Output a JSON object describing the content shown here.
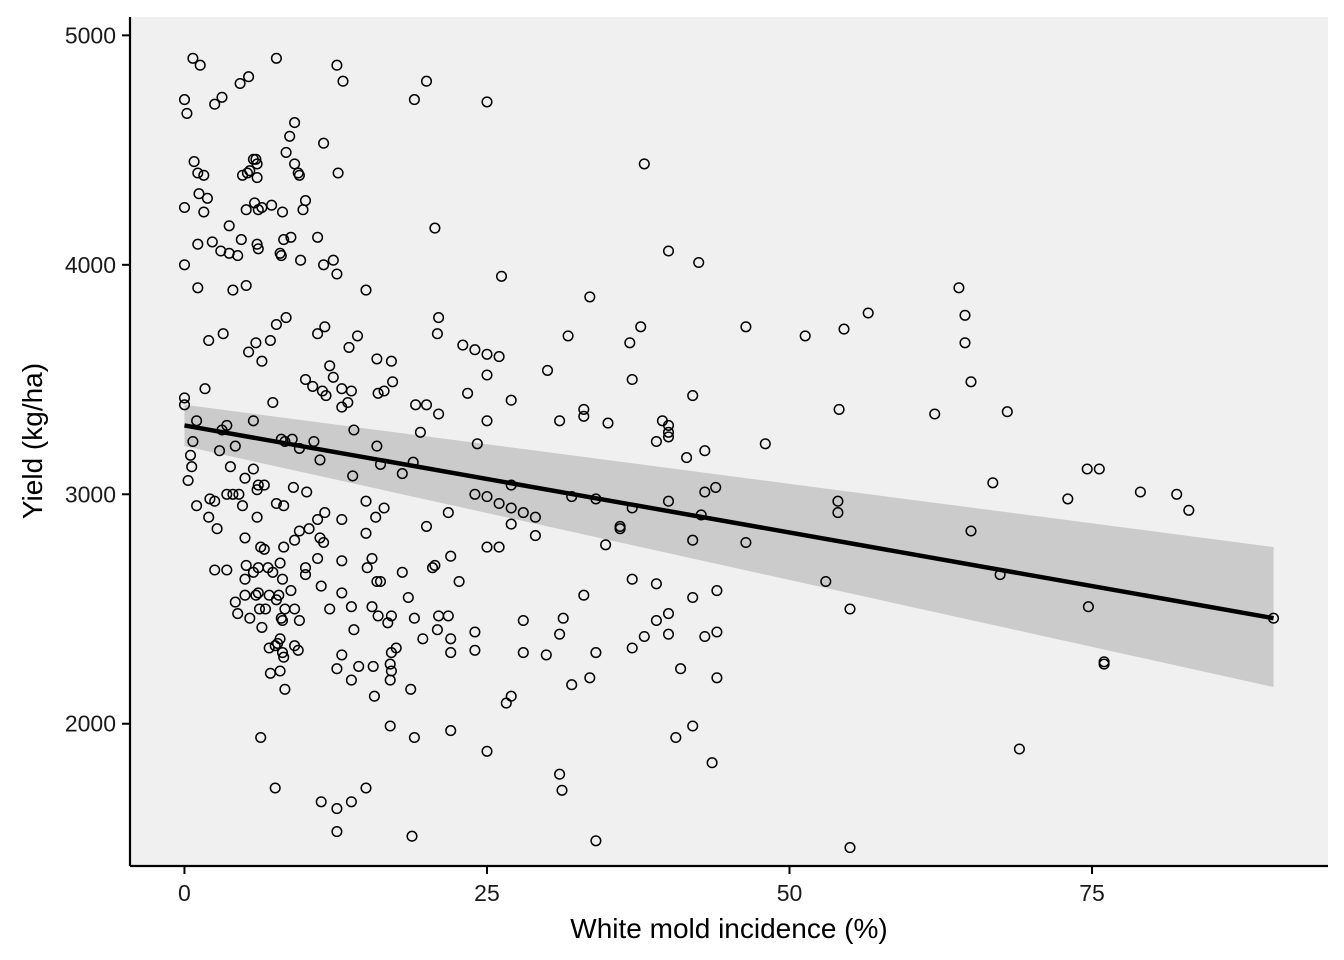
{
  "chart_data": {
    "type": "scatter",
    "title": "",
    "xlabel": "White mold incidence (%)",
    "ylabel": "Yield (kg/ha)",
    "xlim": [
      -4.5,
      94.5
    ],
    "ylim": [
      1380,
      5080
    ],
    "xticks": [
      0,
      25,
      50,
      75
    ],
    "yticks": [
      2000,
      3000,
      4000,
      5000
    ],
    "grid": false,
    "legend": "none",
    "colors": {
      "panel_background": "#f0f0f0",
      "point_stroke": "#000000",
      "point_fill": "none",
      "fit_line": "#000000",
      "confidence_band": "#c8c8c8",
      "axis": "#000000"
    },
    "trend": {
      "method": "linear regression",
      "x": [
        0,
        90
      ],
      "y": [
        3300,
        2460
      ],
      "ci_lower": [
        3210,
        2160
      ],
      "ci_upper": [
        3390,
        2770
      ]
    },
    "points": [
      [
        0,
        4720
      ],
      [
        0.2,
        4660
      ],
      [
        0.7,
        4900
      ],
      [
        1.3,
        4870
      ],
      [
        0.8,
        4450
      ],
      [
        1.1,
        4400
      ],
      [
        1.6,
        4390
      ],
      [
        0,
        4250
      ],
      [
        1.2,
        4310
      ],
      [
        1.9,
        4290
      ],
      [
        1.6,
        4230
      ],
      [
        2.3,
        4100
      ],
      [
        1.1,
        4090
      ],
      [
        0,
        4000
      ],
      [
        1.1,
        3900
      ],
      [
        2.5,
        4700
      ],
      [
        3.1,
        4730
      ],
      [
        4.6,
        4790
      ],
      [
        5.3,
        4820
      ],
      [
        7.6,
        4900
      ],
      [
        12.6,
        4870
      ],
      [
        13.1,
        4800
      ],
      [
        20,
        4800
      ],
      [
        19,
        4720
      ],
      [
        25,
        4710
      ],
      [
        4.8,
        4390
      ],
      [
        5.2,
        4400
      ],
      [
        5.4,
        4410
      ],
      [
        5.7,
        4460
      ],
      [
        5.9,
        4460
      ],
      [
        6.0,
        4440
      ],
      [
        6.0,
        4380
      ],
      [
        6.1,
        4240
      ],
      [
        6.4,
        4250
      ],
      [
        5.8,
        4270
      ],
      [
        7.2,
        4260
      ],
      [
        5.1,
        4240
      ],
      [
        3.7,
        4170
      ],
      [
        4.7,
        4110
      ],
      [
        3.0,
        4060
      ],
      [
        3.7,
        4050
      ],
      [
        4.4,
        4040
      ],
      [
        6.0,
        4090
      ],
      [
        6.1,
        4070
      ],
      [
        7.9,
        4050
      ],
      [
        8.0,
        4040
      ],
      [
        8.1,
        4230
      ],
      [
        8.2,
        4110
      ],
      [
        8.8,
        4120
      ],
      [
        8.4,
        4490
      ],
      [
        8.7,
        4560
      ],
      [
        9.1,
        4620
      ],
      [
        9.1,
        4440
      ],
      [
        9.4,
        4400
      ],
      [
        9.5,
        4390
      ],
      [
        9.8,
        4240
      ],
      [
        10.0,
        4280
      ],
      [
        9.6,
        4020
      ],
      [
        11.0,
        4120
      ],
      [
        11.5,
        4000
      ],
      [
        12.3,
        4020
      ],
      [
        12.6,
        3960
      ],
      [
        11.5,
        4530
      ],
      [
        12.7,
        4400
      ],
      [
        4.0,
        3890
      ],
      [
        5.1,
        3910
      ],
      [
        7.6,
        3740
      ],
      [
        8.4,
        3770
      ],
      [
        2.0,
        3670
      ],
      [
        3.2,
        3700
      ],
      [
        5.3,
        3620
      ],
      [
        5.9,
        3660
      ],
      [
        6.4,
        3580
      ],
      [
        7.1,
        3670
      ],
      [
        7.3,
        3400
      ],
      [
        1.7,
        3460
      ],
      [
        0,
        3420
      ],
      [
        0,
        3390
      ],
      [
        11.0,
        3700
      ],
      [
        11.6,
        3730
      ],
      [
        12.0,
        3560
      ],
      [
        12.3,
        3510
      ],
      [
        10.0,
        3500
      ],
      [
        10.6,
        3470
      ],
      [
        11.4,
        3450
      ],
      [
        11.7,
        3430
      ],
      [
        13.0,
        3460
      ],
      [
        13.5,
        3400
      ],
      [
        13.0,
        3380
      ],
      [
        13.6,
        3640
      ],
      [
        14.3,
        3690
      ],
      [
        15.0,
        3890
      ],
      [
        13.8,
        3450
      ],
      [
        0.5,
        3170
      ],
      [
        0.7,
        3230
      ],
      [
        0.6,
        3120
      ],
      [
        1.0,
        3320
      ],
      [
        3.1,
        3280
      ],
      [
        3.5,
        3300
      ],
      [
        4.2,
        3210
      ],
      [
        2.9,
        3190
      ],
      [
        3.8,
        3120
      ],
      [
        5.7,
        3320
      ],
      [
        5.7,
        3110
      ],
      [
        6.1,
        3040
      ],
      [
        6.6,
        3040
      ],
      [
        5.0,
        3070
      ],
      [
        6.0,
        3020
      ],
      [
        8.0,
        3240
      ],
      [
        8.3,
        3230
      ],
      [
        8.9,
        3240
      ],
      [
        9.5,
        3200
      ],
      [
        9.0,
        3030
      ],
      [
        10.1,
        3010
      ],
      [
        10.7,
        3230
      ],
      [
        11.2,
        3150
      ],
      [
        14.0,
        3280
      ],
      [
        13.9,
        3080
      ],
      [
        15.9,
        3210
      ],
      [
        16.2,
        3130
      ],
      [
        16.0,
        3440
      ],
      [
        16.5,
        3450
      ],
      [
        17.2,
        3490
      ],
      [
        17.1,
        3580
      ],
      [
        15.9,
        3590
      ],
      [
        0.3,
        3060
      ],
      [
        1.0,
        2950
      ],
      [
        2.1,
        2980
      ],
      [
        2.5,
        2970
      ],
      [
        2.0,
        2900
      ],
      [
        2.7,
        2850
      ],
      [
        3.5,
        3000
      ],
      [
        4.0,
        3000
      ],
      [
        4.5,
        3000
      ],
      [
        4.8,
        2950
      ],
      [
        6.0,
        2900
      ],
      [
        7.6,
        2960
      ],
      [
        8.2,
        2950
      ],
      [
        8.2,
        2770
      ],
      [
        9.1,
        2800
      ],
      [
        9.5,
        2840
      ],
      [
        10.3,
        2850
      ],
      [
        11.0,
        2890
      ],
      [
        11.2,
        2810
      ],
      [
        11.5,
        2790
      ],
      [
        11.0,
        2720
      ],
      [
        11.6,
        2920
      ],
      [
        13.0,
        2890
      ],
      [
        13.0,
        2710
      ],
      [
        15.0,
        2830
      ],
      [
        15.0,
        2970
      ],
      [
        16.5,
        2940
      ],
      [
        15.8,
        2900
      ],
      [
        15.1,
        2680
      ],
      [
        15.5,
        2720
      ],
      [
        15.9,
        2620
      ],
      [
        16.2,
        2620
      ],
      [
        2.5,
        2670
      ],
      [
        3.5,
        2670
      ],
      [
        5.0,
        2810
      ],
      [
        5.1,
        2690
      ],
      [
        5.7,
        2660
      ],
      [
        6.3,
        2770
      ],
      [
        6.6,
        2760
      ],
      [
        6.1,
        2680
      ],
      [
        6.9,
        2680
      ],
      [
        7.3,
        2660
      ],
      [
        7.9,
        2700
      ],
      [
        8.1,
        2630
      ],
      [
        8.8,
        2580
      ],
      [
        10.0,
        2680
      ],
      [
        10.0,
        2650
      ],
      [
        11.3,
        2600
      ],
      [
        4.2,
        2530
      ],
      [
        4.4,
        2480
      ],
      [
        5.0,
        2630
      ],
      [
        5.0,
        2560
      ],
      [
        5.4,
        2460
      ],
      [
        5.9,
        2560
      ],
      [
        6.1,
        2570
      ],
      [
        6.2,
        2500
      ],
      [
        6.4,
        2420
      ],
      [
        6.7,
        2500
      ],
      [
        7.0,
        2560
      ],
      [
        7.6,
        2540
      ],
      [
        7.8,
        2560
      ],
      [
        8.0,
        2460
      ],
      [
        8.1,
        2450
      ],
      [
        8.3,
        2500
      ],
      [
        9.1,
        2500
      ],
      [
        9.5,
        2450
      ],
      [
        12.0,
        2500
      ],
      [
        13.0,
        2570
      ],
      [
        7.0,
        2330
      ],
      [
        7.5,
        2340
      ],
      [
        7.7,
        2350
      ],
      [
        7.9,
        2370
      ],
      [
        8.1,
        2310
      ],
      [
        8.2,
        2290
      ],
      [
        9.1,
        2340
      ],
      [
        9.4,
        2320
      ],
      [
        7.1,
        2220
      ],
      [
        7.9,
        2230
      ],
      [
        8.3,
        2150
      ],
      [
        13.8,
        2510
      ],
      [
        14.0,
        2410
      ],
      [
        15.5,
        2510
      ],
      [
        16.0,
        2470
      ],
      [
        16.8,
        2440
      ],
      [
        17.1,
        2470
      ],
      [
        17.1,
        2310
      ],
      [
        17.5,
        2330
      ],
      [
        12.6,
        2240
      ],
      [
        13.0,
        2300
      ],
      [
        13.8,
        2190
      ],
      [
        14.4,
        2250
      ],
      [
        15.6,
        2250
      ],
      [
        15.7,
        2120
      ],
      [
        17.0,
        2260
      ],
      [
        17.1,
        2230
      ],
      [
        17.0,
        2190
      ],
      [
        18.0,
        2660
      ],
      [
        18.5,
        2550
      ],
      [
        19.0,
        2460
      ],
      [
        18.7,
        2150
      ],
      [
        19.7,
        2370
      ],
      [
        20.5,
        2680
      ],
      [
        20.7,
        2690
      ],
      [
        21.0,
        2470
      ],
      [
        20.9,
        2410
      ],
      [
        21.8,
        2470
      ],
      [
        22.0,
        2730
      ],
      [
        22.7,
        2620
      ],
      [
        22.0,
        2370
      ],
      [
        22.0,
        2310
      ],
      [
        17.0,
        1990
      ],
      [
        19.0,
        1940
      ],
      [
        22.0,
        1970
      ],
      [
        25.0,
        1880
      ],
      [
        6.3,
        1940
      ],
      [
        7.5,
        1720
      ],
      [
        11.3,
        1660
      ],
      [
        12.6,
        1630
      ],
      [
        13.8,
        1660
      ],
      [
        15.0,
        1720
      ],
      [
        12.6,
        1530
      ],
      [
        18.8,
        1510
      ],
      [
        18.0,
        3090
      ],
      [
        18.9,
        3140
      ],
      [
        19.5,
        3270
      ],
      [
        19.1,
        3390
      ],
      [
        20.0,
        3390
      ],
      [
        21.0,
        3350
      ],
      [
        20.9,
        3700
      ],
      [
        21.0,
        3770
      ],
      [
        20.7,
        4160
      ],
      [
        21.8,
        2920
      ],
      [
        20.0,
        2860
      ],
      [
        23.0,
        3650
      ],
      [
        24.0,
        3630
      ],
      [
        25.0,
        3610
      ],
      [
        26.0,
        3600
      ],
      [
        25.0,
        3520
      ],
      [
        23.4,
        3440
      ],
      [
        24.2,
        3220
      ],
      [
        25.0,
        3320
      ],
      [
        24.0,
        3000
      ],
      [
        25.0,
        2990
      ],
      [
        26.0,
        2960
      ],
      [
        26.2,
        3950
      ],
      [
        27.0,
        3410
      ],
      [
        27.0,
        3040
      ],
      [
        27.0,
        2940
      ],
      [
        27.0,
        2870
      ],
      [
        25.0,
        2770
      ],
      [
        26.0,
        2770
      ],
      [
        28.0,
        2920
      ],
      [
        29.0,
        2900
      ],
      [
        29.0,
        2820
      ],
      [
        28.0,
        2450
      ],
      [
        28.0,
        2310
      ],
      [
        29.9,
        2300
      ],
      [
        24.0,
        2400
      ],
      [
        24.0,
        2320
      ],
      [
        27.0,
        2120
      ],
      [
        26.6,
        2090
      ],
      [
        30.0,
        3540
      ],
      [
        31.0,
        3320
      ],
      [
        31.7,
        3690
      ],
      [
        33.0,
        3370
      ],
      [
        33.0,
        3340
      ],
      [
        33.5,
        3860
      ],
      [
        35.0,
        3310
      ],
      [
        32.0,
        2990
      ],
      [
        34.0,
        2980
      ],
      [
        34.8,
        2780
      ],
      [
        36.0,
        2850
      ],
      [
        36.0,
        2860
      ],
      [
        37.0,
        2940
      ],
      [
        31.0,
        2390
      ],
      [
        31.3,
        2460
      ],
      [
        33.0,
        2560
      ],
      [
        32.0,
        2170
      ],
      [
        33.5,
        2200
      ],
      [
        34.0,
        2310
      ],
      [
        31.0,
        1780
      ],
      [
        31.2,
        1710
      ],
      [
        34.0,
        1490
      ],
      [
        36.8,
        3660
      ],
      [
        37.7,
        3730
      ],
      [
        37.0,
        3500
      ],
      [
        38.0,
        4440
      ],
      [
        39.0,
        3230
      ],
      [
        39.5,
        3320
      ],
      [
        40.0,
        3300
      ],
      [
        40.0,
        3270
      ],
      [
        40.0,
        3250
      ],
      [
        40.0,
        4060
      ],
      [
        40.0,
        2970
      ],
      [
        42.0,
        3430
      ],
      [
        41.5,
        3160
      ],
      [
        42.5,
        4010
      ],
      [
        43.0,
        3190
      ],
      [
        43.0,
        3010
      ],
      [
        42.7,
        2910
      ],
      [
        43.9,
        3030
      ],
      [
        42.0,
        2800
      ],
      [
        37.0,
        2630
      ],
      [
        39.0,
        2610
      ],
      [
        39.0,
        2450
      ],
      [
        38.0,
        2380
      ],
      [
        37.0,
        2330
      ],
      [
        40.0,
        2480
      ],
      [
        40.0,
        2390
      ],
      [
        42.0,
        2550
      ],
      [
        43.0,
        2380
      ],
      [
        44.0,
        2400
      ],
      [
        44.0,
        2580
      ],
      [
        41.0,
        2240
      ],
      [
        44.0,
        2200
      ],
      [
        40.6,
        1940
      ],
      [
        42.0,
        1990
      ],
      [
        43.6,
        1830
      ],
      [
        46.4,
        3730
      ],
      [
        51.3,
        3690
      ],
      [
        54.5,
        3720
      ],
      [
        56.5,
        3790
      ],
      [
        48.0,
        3220
      ],
      [
        54.1,
        3370
      ],
      [
        46.4,
        2790
      ],
      [
        54.0,
        2970
      ],
      [
        54.0,
        2920
      ],
      [
        53.0,
        2620
      ],
      [
        55.0,
        2500
      ],
      [
        55.0,
        1460
      ],
      [
        62.0,
        3350
      ],
      [
        64.0,
        3900
      ],
      [
        64.5,
        3780
      ],
      [
        64.5,
        3660
      ],
      [
        65.0,
        3490
      ],
      [
        65.0,
        2840
      ],
      [
        66.8,
        3050
      ],
      [
        68.0,
        3360
      ],
      [
        67.4,
        2650
      ],
      [
        69.0,
        1890
      ],
      [
        73.0,
        2980
      ],
      [
        74.6,
        3110
      ],
      [
        75.6,
        3110
      ],
      [
        74.7,
        2510
      ],
      [
        76.0,
        2270
      ],
      [
        76.0,
        2260
      ],
      [
        79.0,
        3010
      ],
      [
        82.0,
        3000
      ],
      [
        83.0,
        2930
      ],
      [
        90.0,
        2460
      ]
    ]
  }
}
